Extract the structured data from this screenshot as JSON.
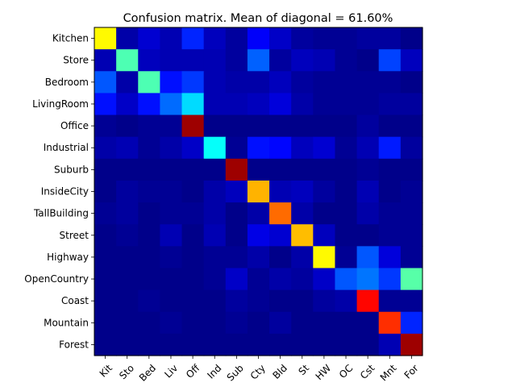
{
  "chart_data": {
    "type": "heatmap",
    "title": "Confusion matrix. Mean of diagonal = 61.60%",
    "colormap": "jet",
    "value_range": [
      0,
      1
    ],
    "row_labels": [
      "Kitchen",
      "Store",
      "Bedroom",
      "LivingRoom",
      "Office",
      "Industrial",
      "Suburb",
      "InsideCity",
      "TallBuilding",
      "Street",
      "Highway",
      "OpenCountry",
      "Coast",
      "Mountain",
      "Forest"
    ],
    "col_labels": [
      "Kit",
      "Sto",
      "Bed",
      "Liv",
      "Off",
      "Ind",
      "Sub",
      "Cty",
      "Bld",
      "St",
      "HW",
      "OC",
      "Cst",
      "Mnt",
      "For"
    ],
    "matrix": [
      [
        0.63,
        0.04,
        0.08,
        0.05,
        0.16,
        0.06,
        0.03,
        0.12,
        0.07,
        0.03,
        0.02,
        0.02,
        0.03,
        0.03,
        0.01
      ],
      [
        0.05,
        0.45,
        0.06,
        0.05,
        0.05,
        0.05,
        0.03,
        0.22,
        0.03,
        0.06,
        0.05,
        0.02,
        0.01,
        0.19,
        0.06
      ],
      [
        0.21,
        0.04,
        0.45,
        0.14,
        0.18,
        0.05,
        0.04,
        0.04,
        0.06,
        0.03,
        0.02,
        0.02,
        0.02,
        0.02,
        0.01
      ],
      [
        0.14,
        0.07,
        0.14,
        0.23,
        0.34,
        0.05,
        0.05,
        0.06,
        0.09,
        0.04,
        0.02,
        0.02,
        0.02,
        0.03,
        0.03
      ],
      [
        0.02,
        0.01,
        0.02,
        0.02,
        0.97,
        0.01,
        0.01,
        0.01,
        0.01,
        0.01,
        0.01,
        0.01,
        0.03,
        0.01,
        0.01
      ],
      [
        0.04,
        0.05,
        0.02,
        0.04,
        0.07,
        0.38,
        0.02,
        0.14,
        0.13,
        0.06,
        0.08,
        0.02,
        0.05,
        0.15,
        0.03
      ],
      [
        0.01,
        0.01,
        0.01,
        0.01,
        0.01,
        0.01,
        0.97,
        0.01,
        0.01,
        0.01,
        0.01,
        0.01,
        0.02,
        0.01,
        0.01
      ],
      [
        0.01,
        0.03,
        0.02,
        0.02,
        0.01,
        0.04,
        0.06,
        0.7,
        0.05,
        0.06,
        0.03,
        0.01,
        0.05,
        0.01,
        0.02
      ],
      [
        0.02,
        0.03,
        0.01,
        0.02,
        0.02,
        0.04,
        0.01,
        0.04,
        0.77,
        0.04,
        0.01,
        0.01,
        0.04,
        0.02,
        0.02
      ],
      [
        0.01,
        0.02,
        0.01,
        0.05,
        0.01,
        0.05,
        0.01,
        0.1,
        0.08,
        0.69,
        0.06,
        0.01,
        0.01,
        0.02,
        0.02
      ],
      [
        0.01,
        0.01,
        0.01,
        0.02,
        0.01,
        0.02,
        0.02,
        0.04,
        0.01,
        0.04,
        0.63,
        0.02,
        0.21,
        0.09,
        0.02
      ],
      [
        0.01,
        0.01,
        0.01,
        0.01,
        0.01,
        0.02,
        0.07,
        0.02,
        0.04,
        0.03,
        0.07,
        0.21,
        0.24,
        0.18,
        0.46
      ],
      [
        0.01,
        0.01,
        0.02,
        0.01,
        0.01,
        0.01,
        0.03,
        0.02,
        0.01,
        0.01,
        0.03,
        0.04,
        0.87,
        0.02,
        0.02
      ],
      [
        0.01,
        0.01,
        0.01,
        0.02,
        0.01,
        0.01,
        0.02,
        0.01,
        0.03,
        0.01,
        0.01,
        0.01,
        0.01,
        0.83,
        0.16
      ],
      [
        0.01,
        0.01,
        0.01,
        0.01,
        0.01,
        0.01,
        0.01,
        0.01,
        0.01,
        0.01,
        0.01,
        0.01,
        0.01,
        0.05,
        0.97
      ]
    ]
  }
}
